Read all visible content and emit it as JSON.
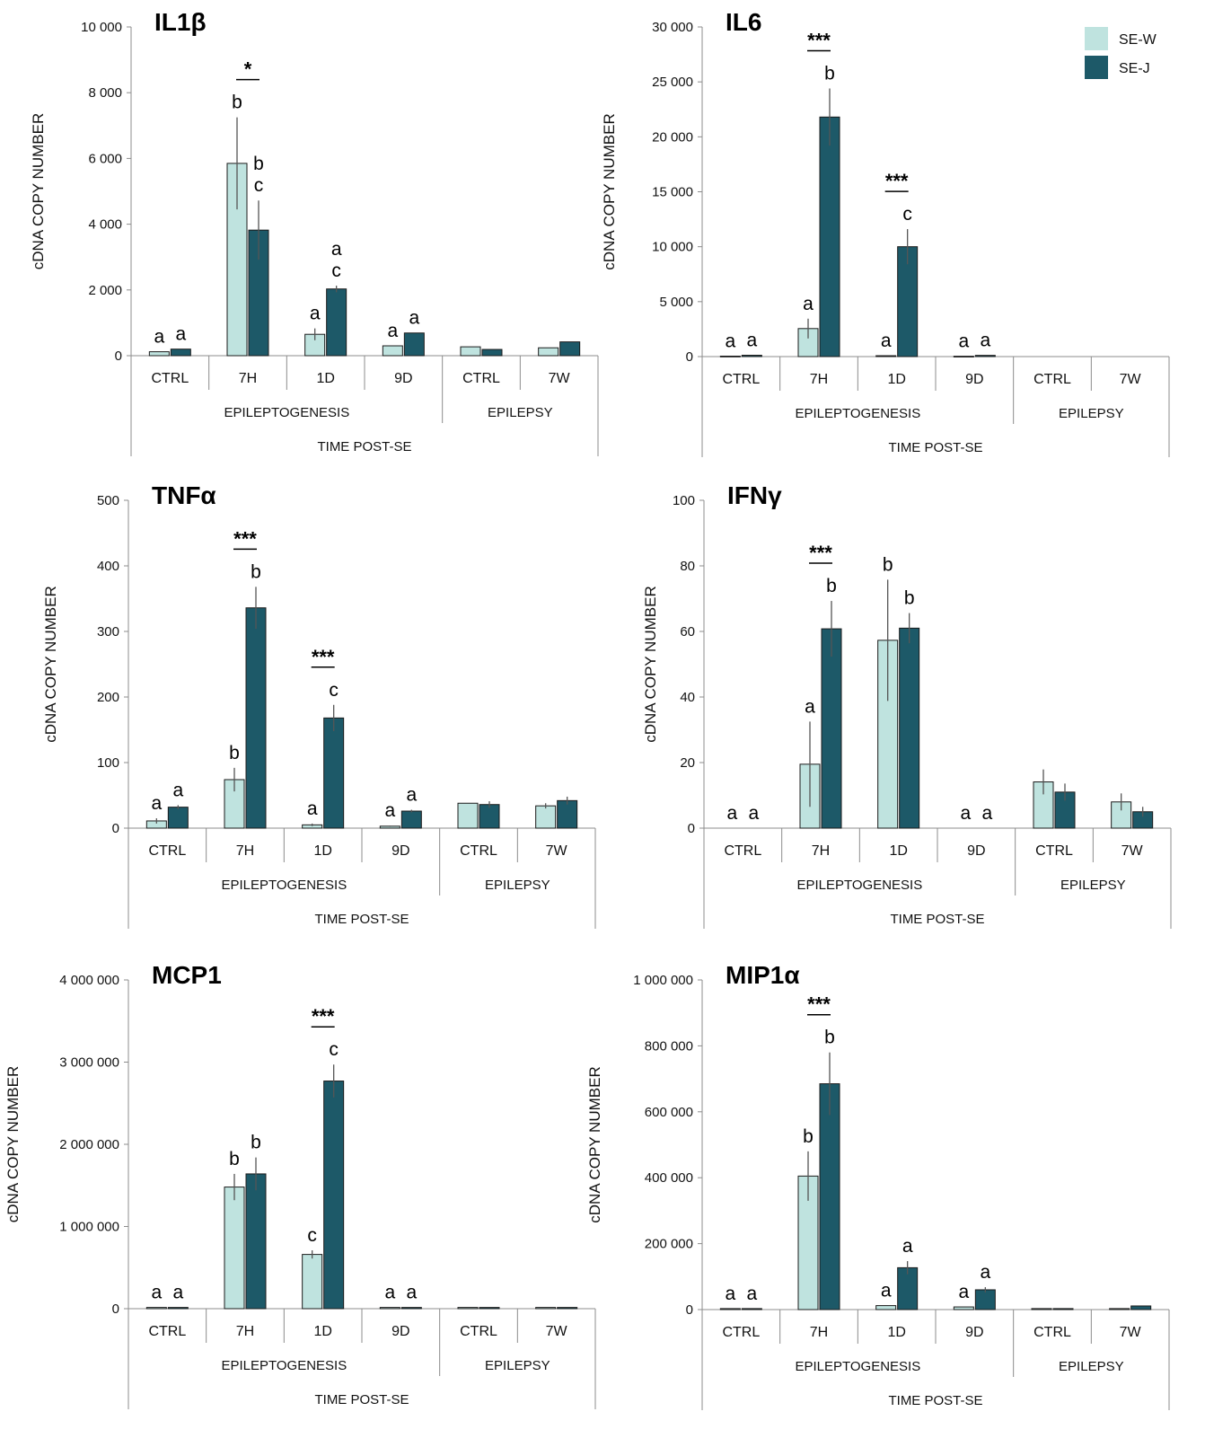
{
  "legend": [
    {
      "name": "SE-W",
      "color": "#bfe3df"
    },
    {
      "name": "SE-J",
      "color": "#1d5968"
    }
  ],
  "chart_data": [
    {
      "type": "bar",
      "title": "IL1β",
      "ylabel": "cDNA COPY NUMBER",
      "xlabel": "TIME POST-SE",
      "ylim": [
        0,
        10000
      ],
      "yticks": [
        0,
        2000,
        4000,
        6000,
        8000,
        10000
      ],
      "ytick_labels": [
        "0",
        "2 000",
        "4 000",
        "6 000",
        "8 000",
        "10 000"
      ],
      "categories": [
        "CTRL",
        "7H",
        "1D",
        "9D",
        "CTRL",
        "7W"
      ],
      "groups": [
        {
          "label": "EPILEPTOGENESIS",
          "span": 4
        },
        {
          "label": "EPILEPSY",
          "span": 2
        }
      ],
      "series": [
        {
          "name": "SE-W",
          "values": [
            120,
            5850,
            650,
            300,
            270,
            240
          ],
          "errors": [
            0,
            1400,
            180,
            0,
            0,
            0
          ]
        },
        {
          "name": "SE-J",
          "values": [
            200,
            3820,
            2030,
            690,
            190,
            420
          ],
          "errors": [
            0,
            900,
            100,
            0,
            0,
            0
          ]
        }
      ],
      "annotations": [
        {
          "cat": 0,
          "s": 0,
          "text": "a"
        },
        {
          "cat": 0,
          "s": 1,
          "text": "a"
        },
        {
          "cat": 1,
          "s": 0,
          "text": "b"
        },
        {
          "cat": 1,
          "s": 1,
          "text": "b"
        },
        {
          "cat": 1,
          "s": 1,
          "text": "c",
          "row": 1
        },
        {
          "cat": 2,
          "s": 0,
          "text": "a"
        },
        {
          "cat": 2,
          "s": 1,
          "text": "a"
        },
        {
          "cat": 2,
          "s": 1,
          "text": "c",
          "row": 1
        },
        {
          "cat": 3,
          "s": 0,
          "text": "a"
        },
        {
          "cat": 3,
          "s": 1,
          "text": "a"
        }
      ],
      "significance": [
        {
          "cat": 1,
          "label": "*"
        }
      ]
    },
    {
      "type": "bar",
      "title": "IL6",
      "ylabel": "cDNA COPY NUMBER",
      "xlabel": "TIME POST-SE",
      "ylim": [
        0,
        30000
      ],
      "yticks": [
        0,
        5000,
        10000,
        15000,
        20000,
        25000,
        30000
      ],
      "ytick_labels": [
        "0",
        "5 000",
        "10 000",
        "15 000",
        "20 000",
        "25 000",
        "30 000"
      ],
      "categories": [
        "CTRL",
        "7H",
        "1D",
        "9D",
        "CTRL",
        "7W"
      ],
      "groups": [
        {
          "label": "EPILEPTOGENESIS",
          "span": 4
        },
        {
          "label": "EPILEPSY",
          "span": 2
        }
      ],
      "series": [
        {
          "name": "SE-W",
          "values": [
            40,
            2550,
            80,
            30,
            0,
            0
          ],
          "errors": [
            0,
            900,
            0,
            0,
            0,
            0
          ]
        },
        {
          "name": "SE-J",
          "values": [
            120,
            21800,
            10000,
            110,
            0,
            0
          ],
          "errors": [
            0,
            2600,
            1600,
            0,
            0,
            0
          ]
        }
      ],
      "annotations": [
        {
          "cat": 0,
          "s": 0,
          "text": "a"
        },
        {
          "cat": 0,
          "s": 1,
          "text": "a"
        },
        {
          "cat": 1,
          "s": 0,
          "text": "a"
        },
        {
          "cat": 1,
          "s": 1,
          "text": "b"
        },
        {
          "cat": 2,
          "s": 0,
          "text": "a"
        },
        {
          "cat": 2,
          "s": 1,
          "text": "c"
        },
        {
          "cat": 3,
          "s": 0,
          "text": "a"
        },
        {
          "cat": 3,
          "s": 1,
          "text": "a"
        }
      ],
      "significance": [
        {
          "cat": 1,
          "label": "***"
        },
        {
          "cat": 2,
          "label": "***"
        }
      ],
      "legend": true
    },
    {
      "type": "bar",
      "title": "TNFα",
      "ylabel": "cDNA COPY NUMBER",
      "xlabel": "TIME POST-SE",
      "ylim": [
        0,
        500
      ],
      "yticks": [
        0,
        100,
        200,
        300,
        400,
        500
      ],
      "ytick_labels": [
        "0",
        "100",
        "200",
        "300",
        "400",
        "500"
      ],
      "categories": [
        "CTRL",
        "7H",
        "1D",
        "9D",
        "CTRL",
        "7W"
      ],
      "groups": [
        {
          "label": "EPILEPTOGENESIS",
          "span": 4
        },
        {
          "label": "EPILEPSY",
          "span": 2
        }
      ],
      "series": [
        {
          "name": "SE-W",
          "values": [
            11,
            74,
            5,
            3,
            38,
            34
          ],
          "errors": [
            4,
            18,
            2,
            1,
            0,
            4
          ]
        },
        {
          "name": "SE-J",
          "values": [
            32,
            336,
            168,
            26,
            36,
            42
          ],
          "errors": [
            3,
            32,
            20,
            2,
            5,
            6
          ]
        }
      ],
      "annotations": [
        {
          "cat": 0,
          "s": 0,
          "text": "a"
        },
        {
          "cat": 0,
          "s": 1,
          "text": "a"
        },
        {
          "cat": 1,
          "s": 0,
          "text": "b"
        },
        {
          "cat": 1,
          "s": 1,
          "text": "b"
        },
        {
          "cat": 2,
          "s": 0,
          "text": "a"
        },
        {
          "cat": 2,
          "s": 1,
          "text": "c"
        },
        {
          "cat": 3,
          "s": 0,
          "text": "a"
        },
        {
          "cat": 3,
          "s": 1,
          "text": "a"
        }
      ],
      "significance": [
        {
          "cat": 1,
          "label": "***"
        },
        {
          "cat": 2,
          "label": "***"
        }
      ]
    },
    {
      "type": "bar",
      "title": "IFNγ",
      "ylabel": "cDNA COPY NUMBER",
      "xlabel": "TIME POST-SE",
      "ylim": [
        0,
        100
      ],
      "yticks": [
        0,
        20,
        40,
        60,
        80,
        100
      ],
      "ytick_labels": [
        "0",
        "20",
        "40",
        "60",
        "80",
        "100"
      ],
      "categories": [
        "CTRL",
        "7H",
        "1D",
        "9D",
        "CTRL",
        "7W"
      ],
      "groups": [
        {
          "label": "EPILEPTOGENESIS",
          "span": 4
        },
        {
          "label": "EPILEPSY",
          "span": 2
        }
      ],
      "series": [
        {
          "name": "SE-W",
          "values": [
            0,
            19.5,
            57.3,
            0,
            14.1,
            8.0
          ],
          "errors": [
            0,
            13,
            18.5,
            0,
            3.8,
            2.6
          ]
        },
        {
          "name": "SE-J",
          "values": [
            0,
            60.8,
            61.0,
            0,
            11.0,
            5.0
          ],
          "errors": [
            0,
            8.5,
            4.6,
            0,
            2.6,
            1.5
          ]
        }
      ],
      "annotations": [
        {
          "cat": 0,
          "s": 0,
          "text": "a"
        },
        {
          "cat": 0,
          "s": 1,
          "text": "a"
        },
        {
          "cat": 1,
          "s": 0,
          "text": "a"
        },
        {
          "cat": 1,
          "s": 1,
          "text": "b"
        },
        {
          "cat": 2,
          "s": 0,
          "text": "b"
        },
        {
          "cat": 2,
          "s": 1,
          "text": "b"
        },
        {
          "cat": 3,
          "s": 0,
          "text": "a"
        },
        {
          "cat": 3,
          "s": 1,
          "text": "a"
        }
      ],
      "significance": [
        {
          "cat": 1,
          "label": "***"
        }
      ]
    },
    {
      "type": "bar",
      "title": "MCP1",
      "ylabel": "cDNA COPY NUMBER",
      "xlabel": "TIME POST-SE",
      "ylim": [
        0,
        4000000
      ],
      "yticks": [
        0,
        1000000,
        2000000,
        3000000,
        4000000
      ],
      "ytick_labels": [
        "0",
        "1 000 000",
        "2 000 000",
        "3 000 000",
        "4 000 000"
      ],
      "categories": [
        "CTRL",
        "7H",
        "1D",
        "9D",
        "CTRL",
        "7W"
      ],
      "groups": [
        {
          "label": "EPILEPTOGENESIS",
          "span": 4
        },
        {
          "label": "EPILEPSY",
          "span": 2
        }
      ],
      "series": [
        {
          "name": "SE-W",
          "values": [
            15000,
            1480000,
            660000,
            15000,
            15000,
            15000
          ],
          "errors": [
            0,
            160000,
            50000,
            0,
            0,
            0
          ]
        },
        {
          "name": "SE-J",
          "values": [
            15000,
            1640000,
            2770000,
            15000,
            15000,
            15000
          ],
          "errors": [
            0,
            200000,
            200000,
            0,
            0,
            0
          ]
        }
      ],
      "annotations": [
        {
          "cat": 0,
          "s": 0,
          "text": "a"
        },
        {
          "cat": 0,
          "s": 1,
          "text": "a"
        },
        {
          "cat": 1,
          "s": 0,
          "text": "b"
        },
        {
          "cat": 1,
          "s": 1,
          "text": "b"
        },
        {
          "cat": 2,
          "s": 0,
          "text": "c"
        },
        {
          "cat": 2,
          "s": 1,
          "text": "c"
        },
        {
          "cat": 3,
          "s": 0,
          "text": "a"
        },
        {
          "cat": 3,
          "s": 1,
          "text": "a"
        }
      ],
      "significance": [
        {
          "cat": 2,
          "label": "***"
        }
      ]
    },
    {
      "type": "bar",
      "title": "MIP1α",
      "ylabel": "cDNA COPY NUMBER",
      "xlabel": "TIME POST-SE",
      "ylim": [
        0,
        1000000
      ],
      "yticks": [
        0,
        200000,
        400000,
        600000,
        800000,
        1000000
      ],
      "ytick_labels": [
        "0",
        "200 000",
        "400 000",
        "600 000",
        "800 000",
        "1 000 000"
      ],
      "categories": [
        "CTRL",
        "7H",
        "1D",
        "9D",
        "CTRL",
        "7W"
      ],
      "groups": [
        {
          "label": "EPILEPTOGENESIS",
          "span": 4
        },
        {
          "label": "EPILEPSY",
          "span": 2
        }
      ],
      "series": [
        {
          "name": "SE-W",
          "values": [
            3000,
            405000,
            12000,
            8000,
            3000,
            3000
          ],
          "errors": [
            0,
            75000,
            0,
            0,
            0,
            0
          ]
        },
        {
          "name": "SE-J",
          "values": [
            3000,
            685000,
            127000,
            60000,
            3000,
            11000
          ],
          "errors": [
            0,
            95000,
            20000,
            8000,
            0,
            0
          ]
        }
      ],
      "annotations": [
        {
          "cat": 0,
          "s": 0,
          "text": "a"
        },
        {
          "cat": 0,
          "s": 1,
          "text": "a"
        },
        {
          "cat": 1,
          "s": 0,
          "text": "b"
        },
        {
          "cat": 1,
          "s": 1,
          "text": "b"
        },
        {
          "cat": 2,
          "s": 0,
          "text": "a"
        },
        {
          "cat": 2,
          "s": 1,
          "text": "a"
        },
        {
          "cat": 3,
          "s": 0,
          "text": "a"
        },
        {
          "cat": 3,
          "s": 1,
          "text": "a"
        }
      ],
      "significance": [
        {
          "cat": 1,
          "label": "***"
        }
      ]
    }
  ]
}
